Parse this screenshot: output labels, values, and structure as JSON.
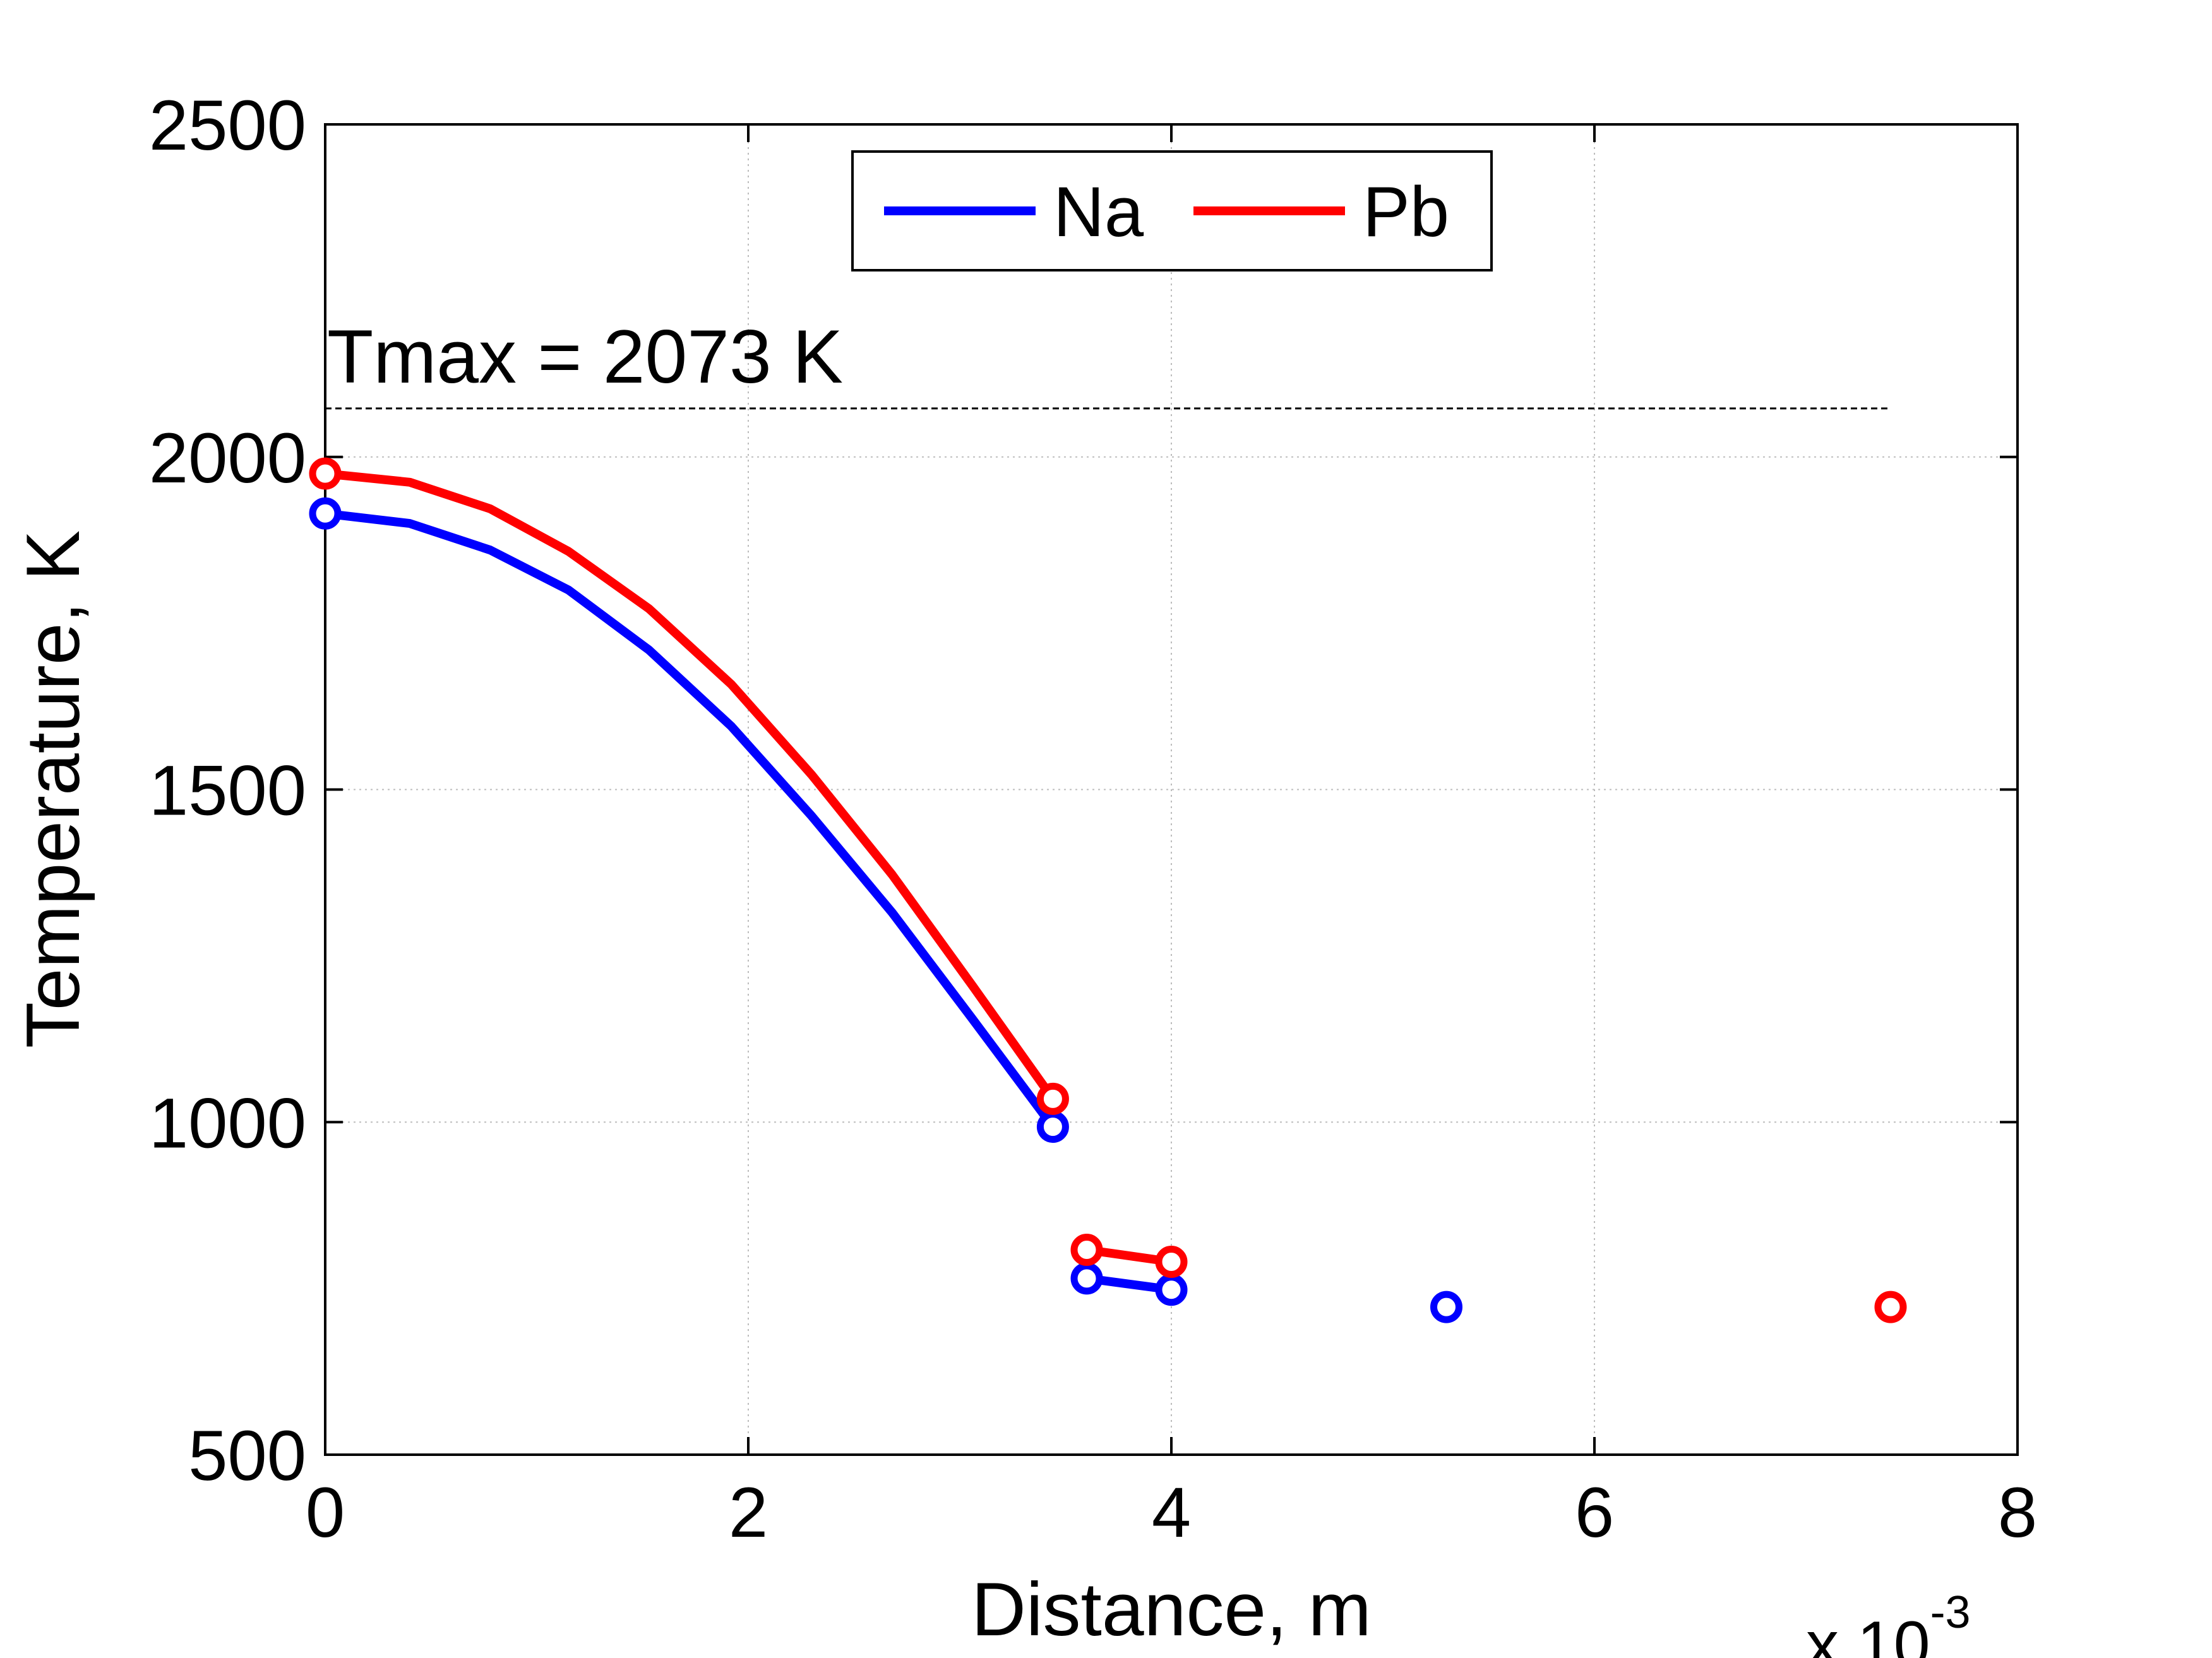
{
  "chart_data": {
    "type": "line",
    "xlabel": "Distance, m",
    "ylabel": "Temperature, K",
    "x_exponent_base": "x 10",
    "x_exponent": "-3",
    "xlim": [
      0,
      8
    ],
    "ylim": [
      500,
      2500
    ],
    "xticks": [
      "0",
      "2",
      "4",
      "6",
      "8"
    ],
    "yticks": [
      "500",
      "1000",
      "1500",
      "2000",
      "2500"
    ],
    "x_scale": 0.001,
    "grid": true,
    "legend": {
      "position": "top-center",
      "entries": [
        "Na",
        "Pb"
      ]
    },
    "annotation": {
      "text": "Tmax = 2073 K",
      "y": 2073
    },
    "series": [
      {
        "name": "Na",
        "color": "#0000ff",
        "segments": [
          [
            [
              0,
              1915
            ],
            [
              0.4,
              1900
            ],
            [
              0.78,
              1860
            ],
            [
              1.15,
              1800
            ],
            [
              1.53,
              1710
            ],
            [
              1.92,
              1595
            ],
            [
              2.3,
              1460
            ],
            [
              2.68,
              1315
            ],
            [
              3.06,
              1155
            ],
            [
              3.44,
              993
            ]
          ],
          [
            [
              3.6,
              765
            ],
            [
              4.0,
              748
            ]
          ]
        ],
        "markers": [
          [
            0,
            1915
          ],
          [
            3.44,
            993
          ],
          [
            3.6,
            765
          ],
          [
            4.0,
            748
          ],
          [
            5.3,
            722
          ]
        ]
      },
      {
        "name": "Pb",
        "color": "#ff0000",
        "segments": [
          [
            [
              0,
              1975
            ],
            [
              0.4,
              1962
            ],
            [
              0.78,
              1922
            ],
            [
              1.15,
              1858
            ],
            [
              1.53,
              1772
            ],
            [
              1.92,
              1658
            ],
            [
              2.3,
              1522
            ],
            [
              2.68,
              1372
            ],
            [
              3.06,
              1205
            ],
            [
              3.44,
              1035
            ]
          ],
          [
            [
              3.6,
              808
            ],
            [
              4.0,
              790
            ]
          ]
        ],
        "markers": [
          [
            0,
            1975
          ],
          [
            3.44,
            1035
          ],
          [
            3.6,
            808
          ],
          [
            4.0,
            790
          ],
          [
            7.4,
            722
          ]
        ]
      }
    ]
  }
}
